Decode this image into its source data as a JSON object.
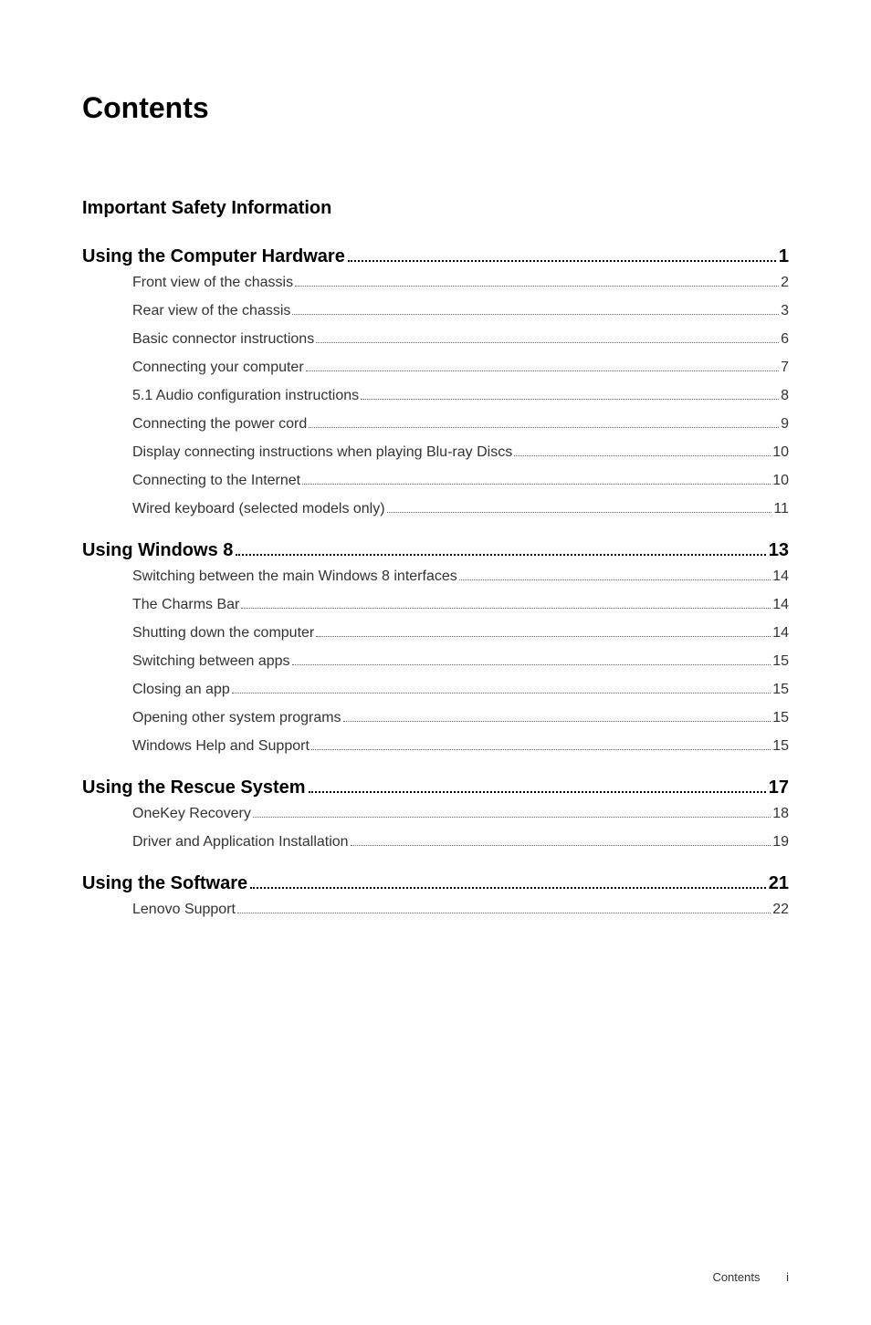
{
  "title": "Contents",
  "standalone_sections": [
    {
      "title": "Important Safety Information"
    }
  ],
  "sections": [
    {
      "title": "Using the Computer Hardware",
      "page": "1",
      "items": [
        {
          "title": "Front view of the chassis",
          "page": "2"
        },
        {
          "title": "Rear view of the chassis",
          "page": "3"
        },
        {
          "title": "Basic connector instructions",
          "page": "6"
        },
        {
          "title": "Connecting your computer",
          "page": "7"
        },
        {
          "title": "5.1 Audio configuration instructions",
          "page": "8"
        },
        {
          "title": "Connecting the power cord",
          "page": "9"
        },
        {
          "title": "Display connecting instructions when playing Blu-ray Discs",
          "page": "10"
        },
        {
          "title": "Connecting to the Internet",
          "page": "10"
        },
        {
          "title": "Wired keyboard (selected models only)",
          "page": "11"
        }
      ]
    },
    {
      "title": "Using Windows 8",
      "page": "13",
      "items": [
        {
          "title": "Switching between the main Windows 8 interfaces",
          "page": "14"
        },
        {
          "title": "The Charms Bar",
          "page": "14"
        },
        {
          "title": "Shutting down the computer",
          "page": "14"
        },
        {
          "title": "Switching between apps",
          "page": "15"
        },
        {
          "title": "Closing an app",
          "page": "15"
        },
        {
          "title": "Opening other system programs",
          "page": "15"
        },
        {
          "title": "Windows Help and Support",
          "page": "15"
        }
      ]
    },
    {
      "title": "Using the Rescue System",
      "page": "17",
      "items": [
        {
          "title": "OneKey Recovery",
          "page": "18"
        },
        {
          "title": "Driver and Application Installation",
          "page": "19"
        }
      ]
    },
    {
      "title": "Using the Software",
      "page": "21",
      "items": [
        {
          "title": "Lenovo Support",
          "page": "22"
        }
      ]
    }
  ],
  "footer": {
    "label": "Contents",
    "page": "i"
  }
}
